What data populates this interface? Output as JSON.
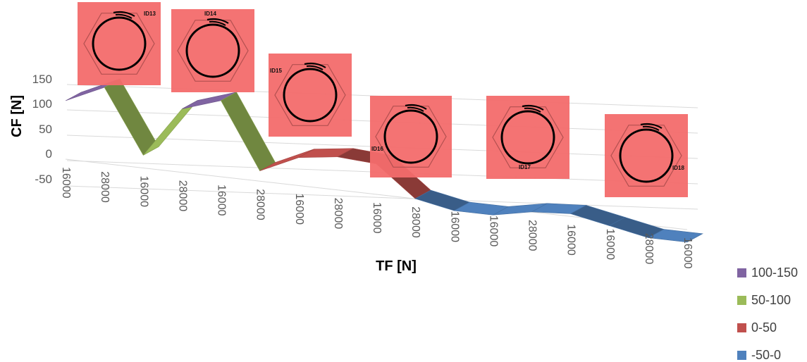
{
  "chart_data": {
    "type": "area",
    "subtype": "3d-surface",
    "xlabel": "TF [N]",
    "ylabel": "CF [N]",
    "ylim": [
      -50,
      150
    ],
    "y_ticks": [
      "150",
      "100",
      "50",
      "0",
      "-50"
    ],
    "x_tick_labels": [
      "16000",
      "28000",
      "16000",
      "28000",
      "16000",
      "28000",
      "16000",
      "28000",
      "16000",
      "28000",
      "16000",
      "16000",
      "28000",
      "16000",
      "16000",
      "28000",
      "16000"
    ],
    "x": [
      "16000",
      "28000",
      "16000",
      "28000",
      "16000",
      "28000",
      "16000",
      "28000",
      "16000",
      "28000",
      "16000",
      "16000",
      "28000",
      "16000",
      "16000",
      "28000",
      "16000"
    ],
    "values": [
      100,
      135,
      10,
      110,
      135,
      5,
      40,
      50,
      45,
      -15,
      -30,
      -30,
      -15,
      -10,
      -25,
      -40,
      -40
    ],
    "legend_position": "right",
    "legend": [
      {
        "label": "100-150",
        "color": "#8064A2"
      },
      {
        "label": "50-100",
        "color": "#9BBB59"
      },
      {
        "label": "0-50",
        "color": "#C0504D"
      },
      {
        "label": "-50-0",
        "color": "#4F81BD"
      }
    ],
    "grid": true
  },
  "insets": [
    "ID13",
    "ID14",
    "ID15",
    "ID16",
    "ID17",
    "ID18"
  ]
}
